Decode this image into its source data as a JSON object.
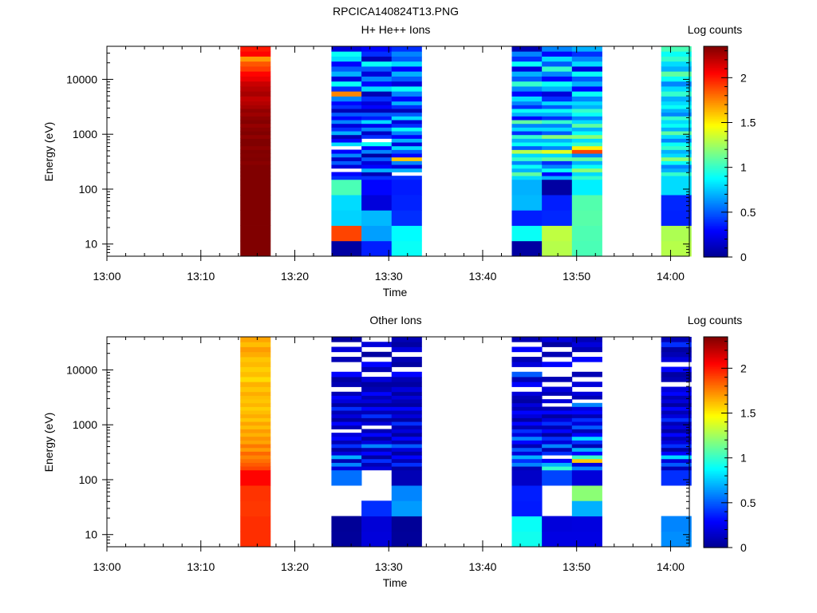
{
  "figure_title": "RPCICA140824T13.PNG",
  "colormap": {
    "stops": [
      "#00008f",
      "#0000ff",
      "#0080ff",
      "#00ffff",
      "#80ff80",
      "#ffff00",
      "#ff8000",
      "#ff0000",
      "#800000"
    ]
  },
  "chart_data": [
    {
      "type": "heatmap",
      "title": "H+ He++ Ions",
      "xlabel": "Time",
      "ylabel": "Energy (eV)",
      "x_ticks": [
        "13:00",
        "13:10",
        "13:20",
        "13:30",
        "13:40",
        "13:50",
        "14:00"
      ],
      "xlim": [
        "13:00",
        "14:02"
      ],
      "y_scale": "log",
      "y_ticks": [
        "10",
        "100",
        "1000",
        "10000"
      ],
      "ylim": [
        6,
        40000
      ],
      "colorbar": {
        "label": "Log counts",
        "ticks": [
          "0",
          "0.5",
          "1",
          "1.5",
          "2"
        ],
        "range": [
          0,
          2.35
        ]
      },
      "columns": [
        {
          "x_start": "13:14.2",
          "x_end": "13:17.4",
          "bottom": [
            2.45,
            2.48,
            2.46,
            2.42,
            2.39
          ],
          "mid": [
            2.37,
            2.4,
            2.35,
            2.36,
            2.33,
            2.38,
            2.34,
            2.37,
            2.32,
            2.36,
            2.35,
            2.31,
            2.36,
            2.33,
            2.3,
            2.34,
            2.32,
            2.28,
            2.31,
            2.26,
            2.23
          ],
          "top": [
            2.2,
            2.26,
            2.22,
            2.18,
            2.1,
            2.05,
            1.92,
            1.86,
            1.7,
            2.05,
            2.0
          ]
        },
        {
          "x_start": "13:23.9",
          "x_end": "13:27.1",
          "bottom": [
            0.05,
            1.9,
            0.78,
            0.8,
            1.05
          ],
          "mid": [
            0.4,
            0.3,
            null,
            0.2,
            0.5,
            0.15,
            0.6,
            0.3,
            null,
            0.8,
            0.3,
            0.1,
            0.7,
            0.4,
            0.2,
            0.6,
            0.3,
            0.5,
            0.1,
            0.4,
            0.3
          ],
          "top": [
            0.6,
            1.75,
            0.4,
            0.9,
            0.2,
            0.7,
            0.5,
            0.3,
            0.8,
            0.9,
            0.2
          ]
        },
        {
          "x_start": "13:27.1",
          "x_end": "13:30.3",
          "bottom": [
            0.36,
            0.66,
            0.72,
            0.2,
            0.3
          ],
          "mid": [
            0.4,
            0.1,
            0.7,
            0.3,
            0.2,
            0.5,
            0.05,
            0.6,
            0.3,
            0.9,
            null,
            0.4,
            0.15,
            0.6,
            0.25,
            0.8,
            0.35,
            0.5,
            0.1,
            0.3,
            0.2
          ],
          "top": [
            0.4,
            0.1,
            0.8,
            0.3,
            0.6,
            0.2,
            0.5,
            0.9,
            0.1,
            0.4,
            0.3
          ]
        },
        {
          "x_start": "13:30.3",
          "x_end": "13:33.5",
          "bottom": [
            0.9,
            0.88,
            0.4,
            0.37,
            0.35
          ],
          "mid": [
            0.4,
            null,
            0.7,
            0.2,
            0.6,
            1.6,
            0.3,
            0.5,
            0.8,
            0.2,
            0.7,
            0.3,
            0.6,
            0.9,
            0.4,
            0.2,
            0.8,
            0.5,
            0.1,
            0.4,
            0.7
          ],
          "top": [
            0.3,
            0.6,
            0.9,
            0.2,
            0.5,
            0.7,
            0.3,
            0.8,
            0.5,
            0.6,
            0.4
          ]
        },
        {
          "x_start": "13:43.1",
          "x_end": "13:46.3",
          "bottom": [
            0.05,
            0.9,
            0.36,
            0.72,
            0.7
          ],
          "mid": [
            0.8,
            1.1,
            0.7,
            0.9,
            0.6,
            1.0,
            0.8,
            1.3,
            0.5,
            0.9,
            0.7,
            1.0,
            0.4,
            0.8,
            0.6,
            1.1,
            0.3,
            0.7,
            0.9,
            0.4,
            0.6
          ],
          "top": [
            0.8,
            0.3,
            0.6,
            1.0,
            0.5,
            0.7,
            0.2,
            0.9,
            0.4,
            0.6,
            0.1
          ]
        },
        {
          "x_start": "13:46.3",
          "x_end": "13:49.5",
          "bottom": [
            1.3,
            1.32,
            0.38,
            0.36,
            0.05
          ],
          "mid": [
            0.7,
            0.3,
            0.9,
            0.6,
            0.4,
            1.1,
            0.8,
            1.4,
            0.6,
            0.9,
            0.7,
            1.2,
            0.5,
            0.8,
            0.6,
            1.0,
            0.4,
            0.7,
            0.9,
            0.5,
            0.8
          ],
          "top": [
            0.4,
            0.2,
            0.7,
            0.9,
            0.3,
            0.6,
            1.0,
            0.5,
            0.8,
            0.3,
            0.6
          ]
        },
        {
          "x_start": "13:49.5",
          "x_end": "13:52.7",
          "bottom": [
            1.05,
            1.06,
            1.08,
            1.07,
            0.85
          ],
          "mid": [
            1.0,
            0.8,
            1.2,
            0.9,
            0.7,
            1.1,
            0.6,
            1.9,
            1.5,
            1.0,
            0.8,
            1.2,
            0.9,
            0.7,
            1.1,
            0.8,
            0.6,
            0.9,
            1.0,
            0.7,
            0.8
          ],
          "top": [
            0.6,
            0.9,
            0.3,
            0.7,
            0.5,
            0.9,
            0.2,
            0.8,
            0.6,
            0.4,
            0.7
          ]
        },
        {
          "x_start": "13:59.0",
          "x_end": "14:02.2",
          "bottom": [
            1.3,
            1.28,
            0.37,
            0.38,
            0.8
          ],
          "mid": [
            0.8,
            1.0,
            0.7,
            0.6,
            0.9,
            1.2,
            0.8,
            0.7,
            1.0,
            0.9,
            0.6,
            0.8,
            1.1,
            0.7,
            0.9,
            0.8,
            1.0,
            0.6,
            0.7,
            0.9,
            0.8
          ],
          "top": [
            0.7,
            1.0,
            0.8,
            0.6,
            0.9,
            1.1,
            0.7,
            0.8,
            1.0,
            0.9,
            1.05
          ]
        }
      ]
    },
    {
      "type": "heatmap",
      "title": "Other Ions",
      "xlabel": "Time",
      "ylabel": "Energy (eV)",
      "x_ticks": [
        "13:00",
        "13:10",
        "13:20",
        "13:30",
        "13:40",
        "13:50",
        "14:00"
      ],
      "xlim": [
        "13:00",
        "14:02"
      ],
      "y_scale": "log",
      "y_ticks": [
        "10",
        "100",
        "1000",
        "10000"
      ],
      "ylim": [
        6,
        40000
      ],
      "colorbar": {
        "label": "Log counts",
        "ticks": [
          "0",
          "0.5",
          "1",
          "1.5",
          "2"
        ],
        "range": [
          0,
          2.35
        ]
      },
      "columns": [
        {
          "x_start": "13:14.2",
          "x_end": "13:17.4",
          "bottom": [
            1.95,
            1.95,
            1.93,
            1.94,
            2.05
          ],
          "mid": [
            1.9,
            1.85,
            1.8,
            1.75,
            1.82,
            1.7,
            1.78,
            1.68,
            1.72,
            1.65,
            1.7,
            1.62,
            1.68,
            1.6,
            1.66,
            1.62,
            1.58,
            1.64,
            1.6,
            1.62,
            1.66
          ],
          "top": [
            1.6,
            1.65,
            1.55,
            1.62,
            1.58,
            1.63,
            1.6,
            1.66,
            1.7,
            1.62,
            1.68
          ]
        },
        {
          "x_start": "13:23.9",
          "x_end": "13:27.1",
          "bottom": [
            0.03,
            0.02,
            null,
            null,
            0.55
          ],
          "mid": [
            0.2,
            0.6,
            0.1,
            0.7,
            0.2,
            0.05,
            0.4,
            0.1,
            0.3,
            0.2,
            null,
            0.1,
            0.3,
            0.05,
            0.2,
            0.1,
            0.4,
            0.05,
            0.2,
            0.3,
            0.1
          ],
          "top": [
            null,
            0.1,
            0.05,
            0.3,
            null,
            null,
            0.1,
            null,
            0.2,
            null,
            0.05
          ]
        },
        {
          "x_start": "13:27.1",
          "x_end": "13:30.3",
          "bottom": [
            0.2,
            0.19,
            0.4,
            null,
            null
          ],
          "mid": [
            0.2,
            0.1,
            0.4,
            0.05,
            0.3,
            0.1,
            0.6,
            0.2,
            0.05,
            0.3,
            0.1,
            null,
            0.2,
            0.05,
            0.4,
            0.1,
            0.3,
            0.05,
            0.2,
            0.1,
            0.3
          ],
          "top": [
            0.1,
            0.05,
            0.2,
            null,
            0.1,
            0.3,
            null,
            0.05,
            null,
            0.2,
            null
          ]
        },
        {
          "x_start": "13:30.3",
          "x_end": "13:33.5",
          "bottom": [
            0.03,
            0.02,
            0.65,
            0.6,
            0.1
          ],
          "mid": [
            0.05,
            0.4,
            0.1,
            0.3,
            0.05,
            0.2,
            0.5,
            0.1,
            0.3,
            0.05,
            0.2,
            0.1,
            0.4,
            0.05,
            0.2,
            0.1,
            0.3,
            0.05,
            0.1,
            0.2,
            0.05
          ],
          "top": [
            0.2,
            0.05,
            0.1,
            0.3,
            null,
            0.05,
            0.1,
            null,
            0.2,
            0.05,
            0.1
          ]
        },
        {
          "x_start": "13:43.1",
          "x_end": "13:46.3",
          "bottom": [
            0.92,
            0.9,
            0.35,
            0.36,
            0.15
          ],
          "mid": [
            0.1,
            0.6,
            0.4,
            0.7,
            0.2,
            0.5,
            0.1,
            0.3,
            0.6,
            0.2,
            0.4,
            0.1,
            0.3,
            0.05,
            0.2,
            0.3,
            0.1,
            0.2,
            0.05,
            0.1,
            0.2
          ],
          "top": [
            null,
            0.3,
            0.1,
            0.5,
            null,
            0.2,
            0.1,
            null,
            0.3,
            null,
            0.1
          ]
        },
        {
          "x_start": "13:46.3",
          "x_end": "13:49.5",
          "bottom": [
            0.22,
            0.2,
            null,
            null,
            0.45
          ],
          "mid": [
            1.0,
            0.7,
            0.3,
            null,
            0.4,
            0.1,
            0.6,
            0.2,
            0.4,
            0.05,
            0.3,
            0.1,
            0.4,
            0.2,
            0.05,
            0.3,
            0.1,
            null,
            0.2,
            null,
            0.1
          ],
          "top": [
            0.2,
            null,
            0.1,
            null,
            null,
            0.3,
            null,
            0.1,
            null,
            0.05,
            0.2
          ]
        },
        {
          "x_start": "13:49.5",
          "x_end": "13:52.7",
          "bottom": [
            0.22,
            0.21,
            0.7,
            1.2,
            0.2
          ],
          "mid": [
            0.6,
            0.2,
            1.6,
            1.0,
            0.3,
            0.7,
            0.1,
            0.4,
            0.8,
            0.3,
            0.1,
            0.5,
            0.2,
            0.4,
            0.1,
            0.3,
            0.2,
            0.6,
            null,
            0.1,
            0.2
          ],
          "top": [
            null,
            0.2,
            null,
            0.1,
            null,
            null,
            0.3,
            null,
            0.1,
            0.2,
            0.1
          ]
        },
        {
          "x_start": "13:59.0",
          "x_end": "14:02.2",
          "bottom": [
            0.62,
            0.6,
            null,
            null,
            0.4
          ],
          "mid": [
            0.1,
            0.5,
            0.2,
            0.8,
            0.3,
            0.05,
            0.4,
            0.2,
            0.1,
            0.3,
            0.05,
            0.2,
            0.1,
            0.4,
            0.2,
            0.1,
            0.3,
            0.05,
            0.2,
            0.1,
            0.3
          ],
          "top": [
            0.2,
            null,
            0.1,
            0.05,
            0.3,
            null,
            0.2,
            0.1,
            0.05,
            0.4,
            0.1
          ]
        }
      ]
    }
  ]
}
